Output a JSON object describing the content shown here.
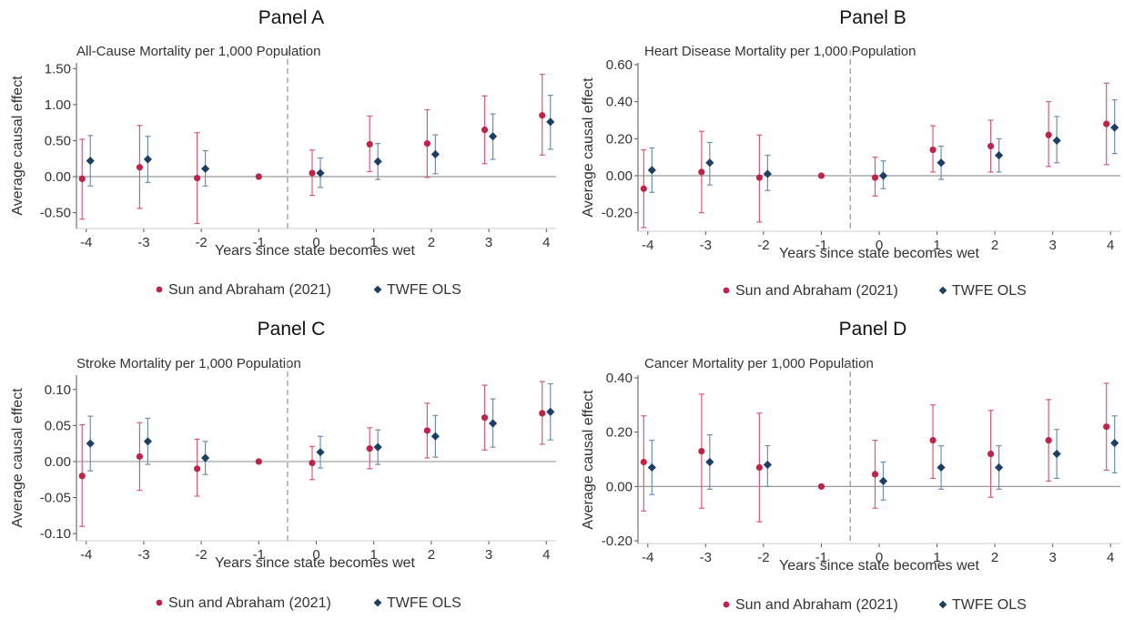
{
  "colors": {
    "sun_abraham": "#c0234a",
    "sun_abraham_ci": "#d85a7a",
    "twfe": "#1d3f66",
    "twfe_ci": "#6f8fb0",
    "axis_text": "#333333",
    "zero_line": "#999999",
    "event_line": "#9a9a9a"
  },
  "chart_data": [
    {
      "type": "scatter",
      "panel_label": "Panel A",
      "title": "All-Cause Mortality per 1,000 Population",
      "xlabel": "Years since state becomes wet",
      "ylabel": "Average causal effect",
      "x": [
        -4,
        -3,
        -2,
        -1,
        0,
        1,
        2,
        3,
        4
      ],
      "xticks": [
        "-4",
        "-3",
        "-2",
        "-1",
        "0",
        "1",
        "2",
        "3",
        "4"
      ],
      "ylim": [
        -0.72,
        1.58
      ],
      "yticks": [
        -0.5,
        0,
        0.5,
        1.0,
        1.5
      ],
      "ytick_labels": [
        "-0.50",
        "0.00",
        "0.50",
        "1.00",
        "1.50"
      ],
      "event_line_x": -0.5,
      "legend_position": "bottom",
      "series": [
        {
          "name": "Sun and Abraham (2021)",
          "marker": "circle",
          "values": [
            -0.03,
            0.13,
            -0.02,
            0.0,
            0.05,
            0.45,
            0.46,
            0.65,
            0.85
          ],
          "lower": [
            -0.59,
            -0.44,
            -0.65,
            null,
            -0.26,
            0.07,
            -0.01,
            0.18,
            0.3
          ],
          "upper": [
            0.52,
            0.71,
            0.61,
            null,
            0.37,
            0.84,
            0.93,
            1.12,
            1.42
          ]
        },
        {
          "name": "TWFE OLS",
          "marker": "diamond",
          "values": [
            0.22,
            0.24,
            0.11,
            null,
            0.05,
            0.21,
            0.31,
            0.56,
            0.76
          ],
          "lower": [
            -0.13,
            -0.08,
            -0.13,
            null,
            -0.15,
            -0.04,
            0.04,
            0.24,
            0.38
          ],
          "upper": [
            0.57,
            0.56,
            0.36,
            null,
            0.26,
            0.46,
            0.58,
            0.87,
            1.13
          ]
        }
      ]
    },
    {
      "type": "scatter",
      "panel_label": "Panel B",
      "title": "Heart Disease Mortality per 1,000 Population",
      "xlabel": "Years since state becomes wet",
      "ylabel": "Average causal effect",
      "x": [
        -4,
        -3,
        -2,
        -1,
        0,
        1,
        2,
        3,
        4
      ],
      "xticks": [
        "-4",
        "-3",
        "-2",
        "-1",
        "0",
        "1",
        "2",
        "3",
        "4"
      ],
      "ylim": [
        -0.3,
        0.61
      ],
      "yticks": [
        -0.2,
        0,
        0.2,
        0.4,
        0.6
      ],
      "ytick_labels": [
        "-0.20",
        "0.00",
        "0.20",
        "0.40",
        "0.60"
      ],
      "event_line_x": -0.5,
      "legend_position": "bottom",
      "series": [
        {
          "name": "Sun and Abraham (2021)",
          "marker": "circle",
          "values": [
            -0.07,
            0.02,
            -0.01,
            0.0,
            -0.01,
            0.14,
            0.16,
            0.22,
            0.28
          ],
          "lower": [
            -0.28,
            -0.2,
            -0.25,
            null,
            -0.11,
            0.02,
            0.02,
            0.05,
            0.06
          ],
          "upper": [
            0.14,
            0.24,
            0.22,
            null,
            0.1,
            0.27,
            0.3,
            0.4,
            0.5
          ]
        },
        {
          "name": "TWFE OLS",
          "marker": "diamond",
          "values": [
            0.03,
            0.07,
            0.01,
            null,
            0.0,
            0.07,
            0.11,
            0.19,
            0.26
          ],
          "lower": [
            -0.09,
            -0.05,
            -0.08,
            null,
            -0.07,
            -0.02,
            0.02,
            0.07,
            0.12
          ],
          "upper": [
            0.15,
            0.18,
            0.11,
            null,
            0.08,
            0.16,
            0.2,
            0.32,
            0.41
          ]
        }
      ]
    },
    {
      "type": "scatter",
      "panel_label": "Panel C",
      "title": "Stroke Mortality per 1,000 Population",
      "xlabel": "Years since state becomes wet",
      "ylabel": "Average causal effect",
      "x": [
        -4,
        -3,
        -2,
        -1,
        0,
        1,
        2,
        3,
        4
      ],
      "xticks": [
        "-4",
        "-3",
        "-2",
        "-1",
        "0",
        "1",
        "2",
        "3",
        "4"
      ],
      "ylim": [
        -0.11,
        0.12
      ],
      "yticks": [
        -0.1,
        -0.05,
        0,
        0.05,
        0.1
      ],
      "ytick_labels": [
        "-0.10",
        "-0.05",
        "0.00",
        "0.05",
        "0.10"
      ],
      "event_line_x": -0.5,
      "legend_position": "bottom",
      "series": [
        {
          "name": "Sun and Abraham (2021)",
          "marker": "circle",
          "values": [
            -0.02,
            0.007,
            -0.01,
            0.0,
            -0.002,
            0.018,
            0.043,
            0.061,
            0.067
          ],
          "lower": [
            -0.09,
            -0.04,
            -0.048,
            null,
            -0.025,
            -0.01,
            0.005,
            0.016,
            0.024
          ],
          "upper": [
            0.051,
            0.054,
            0.031,
            null,
            0.021,
            0.047,
            0.081,
            0.106,
            0.111
          ]
        },
        {
          "name": "TWFE OLS",
          "marker": "diamond",
          "values": [
            0.025,
            0.028,
            0.005,
            null,
            0.013,
            0.02,
            0.035,
            0.053,
            0.069
          ],
          "lower": [
            -0.013,
            -0.004,
            -0.018,
            null,
            -0.009,
            -0.004,
            0.006,
            0.02,
            0.03
          ],
          "upper": [
            0.063,
            0.06,
            0.028,
            null,
            0.035,
            0.044,
            0.064,
            0.087,
            0.108
          ]
        }
      ]
    },
    {
      "type": "scatter",
      "panel_label": "Panel D",
      "title": "Cancer Mortality per 1,000 Population",
      "xlabel": "Years since state becomes wet",
      "ylabel": "Average causal effect",
      "x": [
        -4,
        -3,
        -2,
        -1,
        0,
        1,
        2,
        3,
        4
      ],
      "xticks": [
        "-4",
        "-3",
        "-2",
        "-1",
        "0",
        "1",
        "2",
        "3",
        "4"
      ],
      "ylim": [
        -0.21,
        0.41
      ],
      "yticks": [
        -0.2,
        0,
        0.2,
        0.4
      ],
      "ytick_labels": [
        "-0.20",
        "0.00",
        "0.20",
        "0.40"
      ],
      "event_line_x": -0.5,
      "legend_position": "bottom",
      "series": [
        {
          "name": "Sun and Abraham (2021)",
          "marker": "circle",
          "values": [
            0.09,
            0.13,
            0.07,
            0.0,
            0.045,
            0.17,
            0.12,
            0.17,
            0.22
          ],
          "lower": [
            -0.09,
            -0.08,
            -0.13,
            null,
            -0.08,
            0.03,
            -0.04,
            0.02,
            0.06
          ],
          "upper": [
            0.26,
            0.34,
            0.27,
            null,
            0.17,
            0.3,
            0.28,
            0.32,
            0.38
          ]
        },
        {
          "name": "TWFE OLS",
          "marker": "diamond",
          "values": [
            0.07,
            0.09,
            0.08,
            null,
            0.02,
            0.07,
            0.07,
            0.12,
            0.16
          ],
          "lower": [
            -0.03,
            -0.01,
            0.0,
            null,
            -0.05,
            -0.01,
            -0.01,
            0.03,
            0.05
          ],
          "upper": [
            0.17,
            0.19,
            0.15,
            null,
            0.09,
            0.15,
            0.15,
            0.21,
            0.26
          ]
        }
      ]
    }
  ]
}
